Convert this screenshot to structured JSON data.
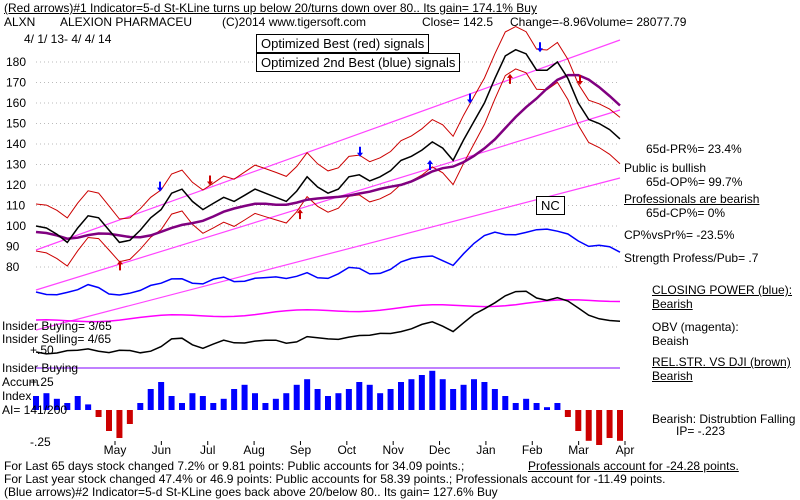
{
  "header": {
    "line1": "(Red arrows)#1 Indicator=5-d St-KLine turns up below 20/turns down over 80.. Its gain= 174.1% Buy",
    "ticker": "ALXN",
    "company": "ALEXION PHARMACEU",
    "copyright": "(C)2014 www.tigersoft.com",
    "close": "Close= 142.5",
    "change": "Change=-8.96",
    "volume": "Volume= 28077.79",
    "dates": "4/ 1/ 13- 4/ 4/ 14"
  },
  "legend_boxes": {
    "red": "Optimized Best (red) signals",
    "blue": "Optimized 2nd Best (blue) signals"
  },
  "annotations": {
    "nc": "NC",
    "pr65": "65d-PR%= 23.4%",
    "public_bullish": "Public is bullish",
    "op65": "65d-OP%= 99.7%",
    "pros_bearish": "Professionals are bearish",
    "cp65": "65d-CP%= 0%",
    "cpvspr": "CP%vsPr%= -23.5%",
    "strength": "Strength Profess/Pub= .7",
    "closing_power": "CLOSING POWER (blue):",
    "closing_power_v": "Bearish",
    "obv": "OBV (magenta):",
    "obv_v": "Beaish",
    "relstr": "REL.STR. VS DJI (brown)",
    "relstr_v": "Bearish",
    "bearish_dist": "Bearish: Distrubtion Falling",
    "ip": "IP= -.223",
    "insider_buying1": "Insider Buying= 3/65",
    "insider_selling": "Insider Selling= 4/65",
    "plus50": "+.50",
    "insider_buying2": "Insider Buying",
    "accum": "Accum",
    "plus25": "+.25",
    "index": "Index",
    "ai": "AI= 141/200",
    "minus25": "-.25"
  },
  "footer": {
    "line1a": "For Last 65 days stock changed  7.2% or  9.81 points:  Public accounts for  34.09 points.;",
    "line1b": "Professionals account for -24.28 points.",
    "line2": "For Last year stock changed  47.4% or  46.9 points:  Public accounts for  58.39 points.;  Professionals account for -11.49 points.",
    "line3": "(Blue arrows)#2 Indicator=5-d St-KLine goes back above 20/below 80.. Its gain= 127.6% Buy"
  },
  "colors": {
    "price": "#000000",
    "upper_band": "#cc0000",
    "ma": "#800080",
    "channel": "#ff44ff",
    "closing_power": "#0000ff",
    "obv": "#ff00ff",
    "relstr": "#000000",
    "accum_pos": "#0000ff",
    "accum_neg": "#cc0000"
  },
  "chart_data": {
    "type": "line",
    "ylabel": "",
    "ylim": [
      80,
      190
    ],
    "yticks": [
      180,
      170,
      160,
      150,
      140,
      130,
      120,
      110,
      100,
      90,
      80
    ],
    "xticks": [
      "May",
      "Jun",
      "Jul",
      "Aug",
      "Sep",
      "Oct",
      "Nov",
      "Dec",
      "Jan",
      "Feb",
      "Mar",
      "Apr"
    ],
    "series": [
      {
        "values": [
          100,
          99,
          96,
          92,
          99,
          105,
          104,
          98,
          92,
          93,
          98,
          104,
          108,
          116,
          118,
          112,
          108,
          111,
          114,
          112,
          115,
          118,
          116,
          114,
          112,
          117,
          124,
          119,
          116,
          118,
          124,
          125,
          122,
          124,
          127,
          132,
          134,
          137,
          141,
          138,
          132,
          142,
          151,
          160,
          172,
          183,
          186,
          184,
          176,
          176,
          180,
          172,
          160,
          152,
          150,
          147,
          142.5
        ]
      }
    ],
    "accum_index": {
      "values": [
        0.1,
        0.12,
        0.08,
        0.05,
        0.1,
        0.04,
        -0.05,
        -0.15,
        -0.2,
        -0.1,
        0.05,
        0.15,
        0.2,
        0.1,
        0.05,
        0.12,
        0.1,
        0.05,
        0.08,
        0.15,
        0.18,
        0.12,
        0.05,
        0.08,
        0.12,
        0.18,
        0.22,
        0.15,
        0.1,
        0.12,
        0.15,
        0.2,
        0.18,
        0.12,
        0.15,
        0.2,
        0.22,
        0.25,
        0.28,
        0.22,
        0.15,
        0.18,
        0.22,
        0.2,
        0.15,
        0.1,
        0.05,
        0.08,
        0.05,
        0.02,
        0.05,
        -0.05,
        -0.15,
        -0.22,
        -0.25,
        -0.2,
        -0.22
      ]
    }
  }
}
